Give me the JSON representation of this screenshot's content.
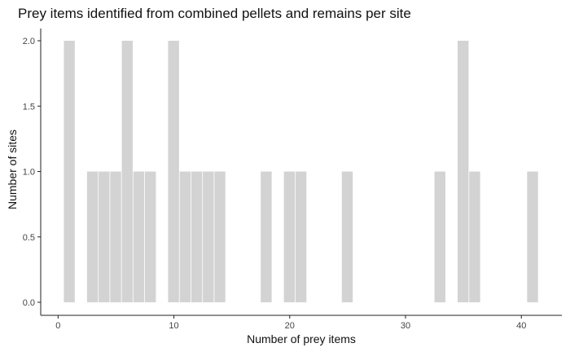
{
  "chart_data": {
    "type": "bar",
    "title": "Prey items identified from combined pellets and remains per site",
    "xlabel": "Number of prey items",
    "ylabel": "Number of sites",
    "bar_color": "#d3d3d3",
    "binwidth": 1,
    "xlim": [
      -1.5,
      43.5
    ],
    "ylim": [
      0,
      2.0
    ],
    "xticks": [
      0,
      10,
      20,
      30,
      40
    ],
    "xtick_labels": [
      "0",
      "10",
      "20",
      "30",
      "40"
    ],
    "yticks": [
      0,
      0.5,
      1.0,
      1.5,
      2.0
    ],
    "ytick_labels": [
      "0.0",
      "0.5",
      "1.0",
      "1.5",
      "2.0"
    ],
    "grid": false,
    "x": [
      1,
      3,
      4,
      5,
      6,
      7,
      8,
      10,
      11,
      12,
      13,
      14,
      18,
      20,
      21,
      25,
      33,
      35,
      36,
      41
    ],
    "values": [
      2,
      1,
      1,
      1,
      2,
      1,
      1,
      2,
      1,
      1,
      1,
      1,
      1,
      1,
      1,
      1,
      1,
      2,
      1,
      1
    ]
  }
}
